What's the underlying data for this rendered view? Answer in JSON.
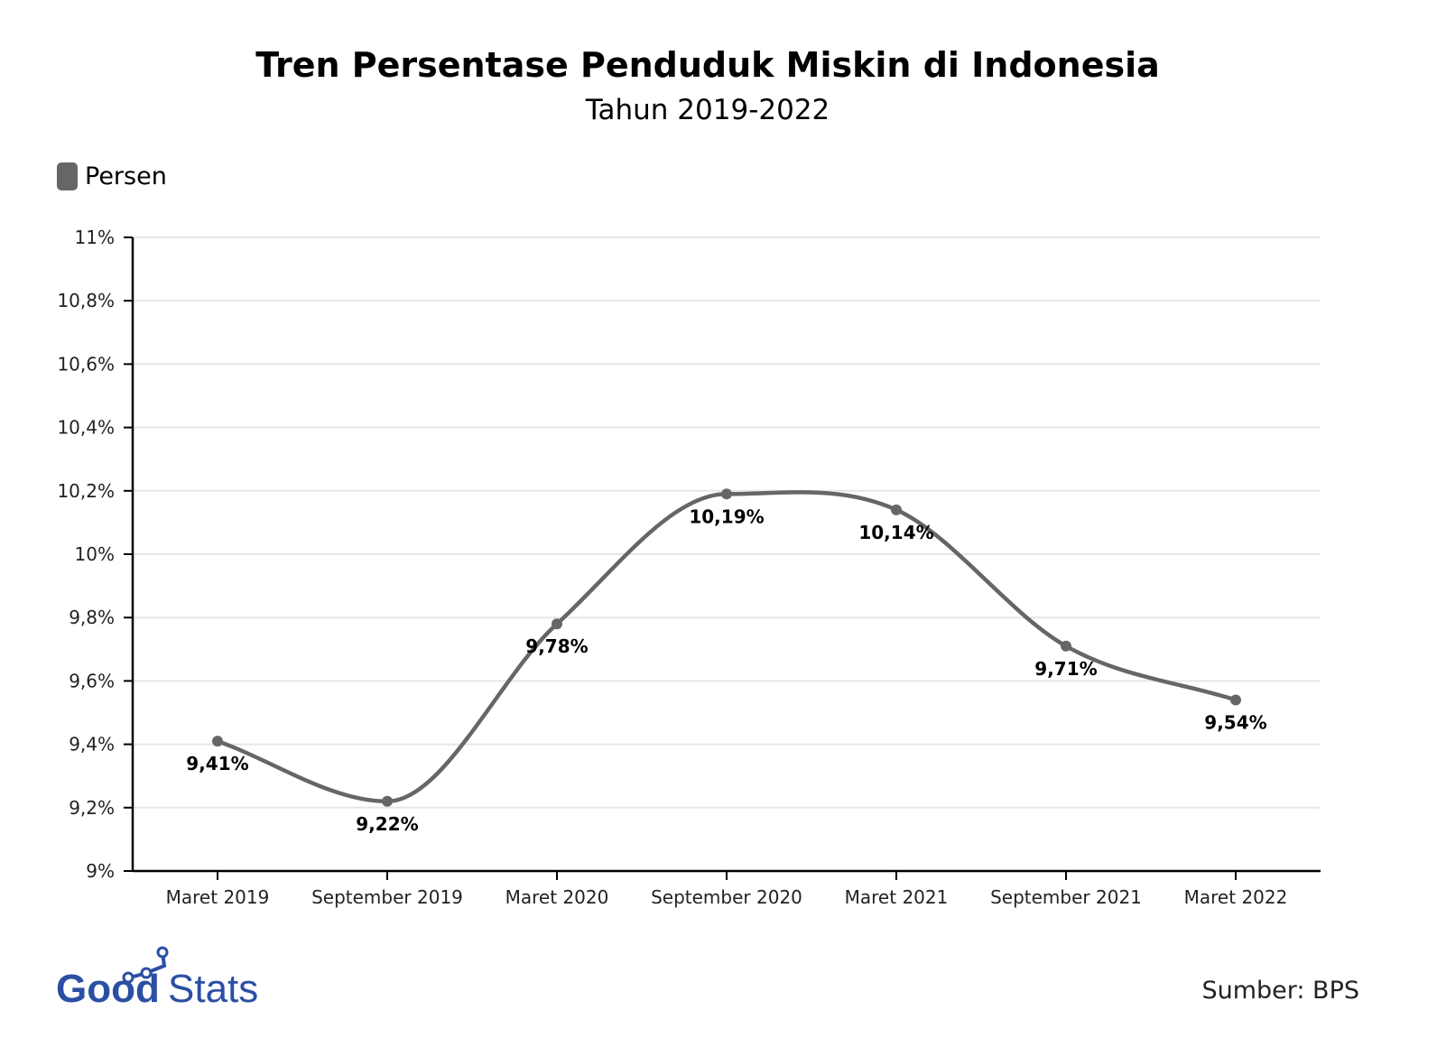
{
  "chart_data": {
    "type": "line",
    "title": "Tren Persentase Penduduk Miskin di Indonesia",
    "subtitle": "Tahun 2019-2022",
    "categories": [
      "Maret 2019",
      "September 2019",
      "Maret 2020",
      "September 2020",
      "Maret 2021",
      "September 2021",
      "Maret 2022"
    ],
    "series": [
      {
        "name": "Persen",
        "values": [
          9.41,
          9.22,
          9.78,
          10.19,
          10.14,
          9.71,
          9.54
        ],
        "labels": [
          "9,41%",
          "9,22%",
          "9,78%",
          "10,19%",
          "10,14%",
          "9,71%",
          "9,54%"
        ],
        "color": "#666666"
      }
    ],
    "ylim": [
      9,
      11
    ],
    "yticks": [
      9,
      9.2,
      9.4,
      9.6,
      9.8,
      10,
      10.2,
      10.4,
      10.6,
      10.8,
      11
    ],
    "ytick_labels": [
      "9%",
      "9,2%",
      "9,4%",
      "9,6%",
      "9,8%",
      "10%",
      "10,2%",
      "10,4%",
      "10,6%",
      "10,8%",
      "11%"
    ],
    "grid": true,
    "legend_position": "top-left",
    "xlabel": "",
    "ylabel": ""
  },
  "source": "Sumber: BPS",
  "logo": {
    "text_bold": "Good",
    "text_light": "Stats",
    "color": "#2b4fa3"
  }
}
